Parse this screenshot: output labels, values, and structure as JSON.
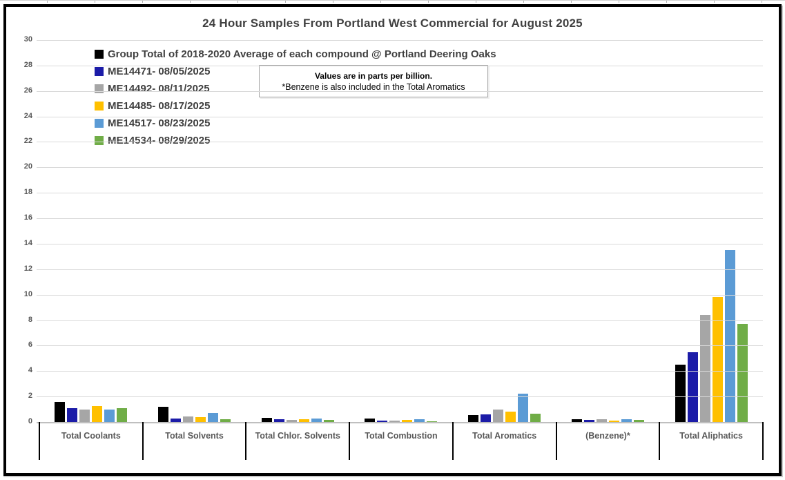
{
  "title": "24 Hour Samples From Portland West Commercial for August 2025",
  "note": {
    "line1": "Values are in parts per billion.",
    "line2": "*Benzene is also included in the Total Aromatics"
  },
  "colors": {
    "title_text": "#404040",
    "axis_text": "#595959",
    "gridline": "#d9d9d9",
    "axis_line": "#bfbfbf",
    "divider": "#000000",
    "frame_border": "#000000"
  },
  "chart_data": {
    "type": "bar",
    "title": "24 Hour Samples From Portland West Commercial for August 2025",
    "units": "parts per billion",
    "ylim": [
      0,
      30
    ],
    "ytick_step": 2,
    "grid": true,
    "legend_position": "top-left",
    "categories": [
      "Total Coolants",
      "Total Solvents",
      "Total Chlor. Solvents",
      "Total Combustion",
      "Total Aromatics",
      "(Benzene)*",
      "Total Aliphatics"
    ],
    "series": [
      {
        "name": "Group Total of 2018-2020 Average of each compound @ Portland Deering Oaks",
        "color": "#000000",
        "values": [
          1.6,
          1.2,
          0.35,
          0.25,
          0.55,
          0.2,
          4.5
        ]
      },
      {
        "name": "ME14471- 08/05/2025",
        "color": "#1c1ca8",
        "values": [
          1.1,
          0.25,
          0.2,
          0.1,
          0.6,
          0.15,
          5.5
        ]
      },
      {
        "name": "ME14492- 08/11/2025",
        "color": "#a6a6a6",
        "values": [
          1.0,
          0.45,
          0.18,
          0.1,
          1.0,
          0.2,
          8.4
        ]
      },
      {
        "name": "ME14485- 08/17/2025",
        "color": "#ffc000",
        "values": [
          1.25,
          0.4,
          0.2,
          0.15,
          0.8,
          0.12,
          9.8
        ]
      },
      {
        "name": "ME14517- 08/23/2025",
        "color": "#5b9bd5",
        "values": [
          0.95,
          0.7,
          0.28,
          0.2,
          2.2,
          0.2,
          13.5
        ]
      },
      {
        "name": "ME14534- 08/29/2025",
        "color": "#70ad47",
        "values": [
          1.1,
          0.2,
          0.15,
          0.05,
          0.65,
          0.15,
          7.7
        ]
      }
    ]
  }
}
